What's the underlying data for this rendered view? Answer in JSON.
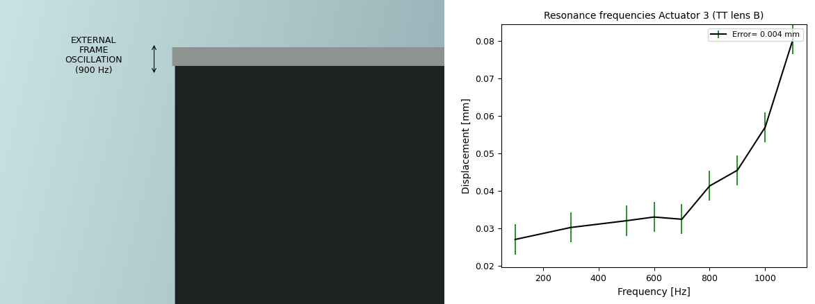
{
  "chart_data": {
    "type": "line",
    "title": "Resonance frequencies Actuator 3 (TT lens B)",
    "x_label": "Frequency [Hz]",
    "y_label": "Displacement [mm]",
    "x": [
      100,
      300,
      500,
      600,
      700,
      800,
      900,
      1000,
      1100
    ],
    "series": [
      {
        "name": "Error= 0.004 mm",
        "color": "black",
        "values": [
          0.027,
          0.0302,
          0.032,
          0.033,
          0.0324,
          0.0413,
          0.0455,
          0.057,
          0.0805
        ],
        "error": [
          0.004,
          0.004,
          0.004,
          0.004,
          0.004,
          0.004,
          0.004,
          0.004,
          0.004
        ]
      }
    ],
    "xlim": [
      50,
      1150
    ],
    "xticks": [
      200,
      400,
      600,
      800,
      1000
    ],
    "ylim": [
      0.0195,
      0.0845
    ],
    "yticks": [
      0.02,
      0.03,
      0.04,
      0.05,
      0.06,
      0.07,
      0.08
    ],
    "legend": "upper right",
    "grid": false
  },
  "image": {
    "annotation": "EXTERNAL\nFRAME\nOSCILLATION\n(900 Hz)"
  }
}
